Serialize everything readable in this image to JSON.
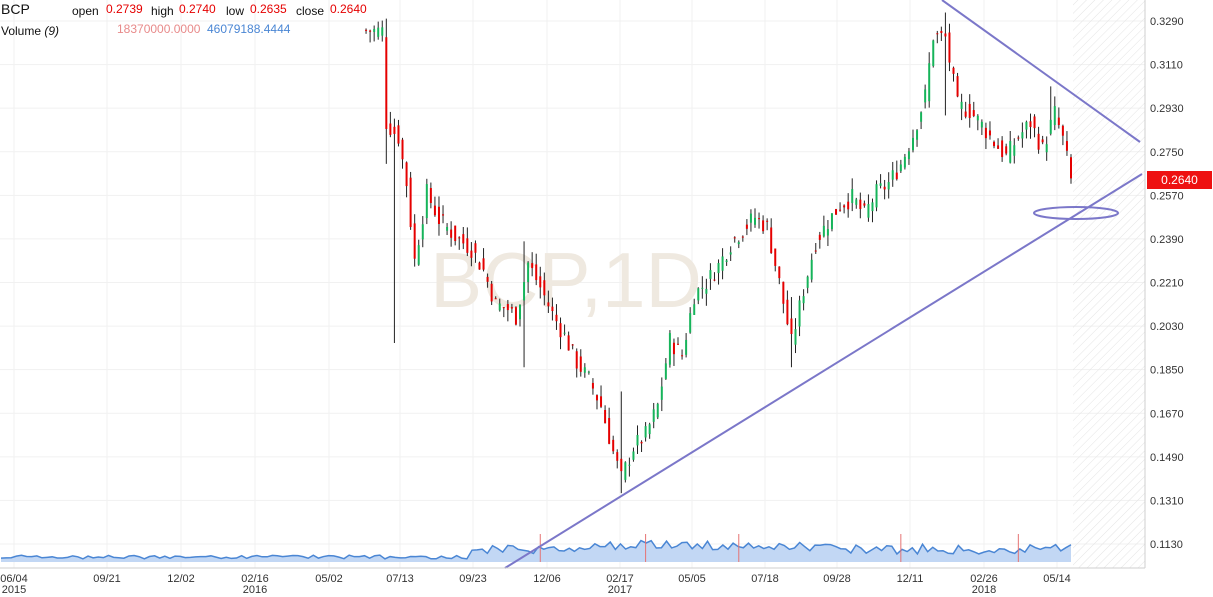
{
  "legend": {
    "symbol": "BCP",
    "open_label": "open",
    "open_value": "0.2739",
    "high_label": "high",
    "high_value": "0.2740",
    "low_label": "low",
    "low_value": "0.2635",
    "close_label": "close",
    "close_value": "0.2640",
    "volume_label": "Volume",
    "volume_period": "(9)",
    "volume_value_1": "18370000.0000",
    "volume_value_2": "46079188.4444"
  },
  "watermark": "BCP,1D",
  "last_price_tag": "0.2640",
  "colors": {
    "up": "#16b45a",
    "down": "#e50000",
    "drawing": "#7b77c9",
    "volume_fill": "#c2d7f4",
    "volume_line": "#4a86d4",
    "tag": "#ee1111"
  },
  "chart_data": {
    "type": "candlestick",
    "symbol": "BCP",
    "interval": "1D",
    "y_ticks": [
      "0.3290",
      "0.3110",
      "0.2930",
      "0.2750",
      "0.2570",
      "0.2390",
      "0.2210",
      "0.2030",
      "0.1850",
      "0.1670",
      "0.1490",
      "0.1310",
      "0.1130"
    ],
    "x_ticks": [
      {
        "label": "06/04",
        "sub": "2015"
      },
      {
        "label": "09/21",
        "sub": ""
      },
      {
        "label": "12/02",
        "sub": ""
      },
      {
        "label": "02/16",
        "sub": "2016"
      },
      {
        "label": "05/02",
        "sub": ""
      },
      {
        "label": "07/13",
        "sub": ""
      },
      {
        "label": "09/23",
        "sub": ""
      },
      {
        "label": "12/06",
        "sub": ""
      },
      {
        "label": "02/17",
        "sub": "2017"
      },
      {
        "label": "05/05",
        "sub": ""
      },
      {
        "label": "07/18",
        "sub": ""
      },
      {
        "label": "09/28",
        "sub": ""
      },
      {
        "label": "12/11",
        "sub": ""
      },
      {
        "label": "02/26",
        "sub": "2018"
      },
      {
        "label": "05/14",
        "sub": ""
      }
    ],
    "ylim": [
      0.1085,
      0.337
    ],
    "grid": true,
    "last_close": 0.264,
    "price_path": [
      [
        5,
        0.325
      ],
      [
        6,
        0.287
      ],
      [
        9,
        0.281
      ],
      [
        11,
        0.262
      ],
      [
        13,
        0.23
      ],
      [
        16,
        0.258
      ],
      [
        19,
        0.247
      ],
      [
        23,
        0.24
      ],
      [
        27,
        0.235
      ],
      [
        30,
        0.226
      ],
      [
        33,
        0.212
      ],
      [
        36,
        0.21
      ],
      [
        38,
        0.207
      ],
      [
        41,
        0.229
      ],
      [
        44,
        0.219
      ],
      [
        47,
        0.208
      ],
      [
        50,
        0.199
      ],
      [
        53,
        0.188
      ],
      [
        56,
        0.181
      ],
      [
        59,
        0.17
      ],
      [
        62,
        0.151
      ],
      [
        64,
        0.14
      ],
      [
        67,
        0.153
      ],
      [
        70,
        0.158
      ],
      [
        73,
        0.17
      ],
      [
        76,
        0.197
      ],
      [
        79,
        0.191
      ],
      [
        82,
        0.216
      ],
      [
        85,
        0.221
      ],
      [
        88,
        0.228
      ],
      [
        91,
        0.237
      ],
      [
        94,
        0.243
      ],
      [
        97,
        0.248
      ],
      [
        100,
        0.244
      ],
      [
        103,
        0.221
      ],
      [
        106,
        0.196
      ],
      [
        109,
        0.218
      ],
      [
        112,
        0.238
      ],
      [
        115,
        0.246
      ],
      [
        118,
        0.253
      ],
      [
        121,
        0.256
      ],
      [
        124,
        0.249
      ],
      [
        127,
        0.258
      ],
      [
        130,
        0.262
      ],
      [
        133,
        0.27
      ],
      [
        136,
        0.282
      ],
      [
        139,
        0.298
      ],
      [
        141,
        0.323
      ],
      [
        144,
        0.322
      ],
      [
        147,
        0.294
      ],
      [
        150,
        0.292
      ],
      [
        153,
        0.286
      ],
      [
        156,
        0.279
      ],
      [
        159,
        0.273
      ],
      [
        162,
        0.281
      ],
      [
        165,
        0.287
      ],
      [
        168,
        0.276
      ],
      [
        171,
        0.291
      ],
      [
        173,
        0.28
      ],
      [
        175,
        0.264
      ]
    ],
    "spikes": [
      {
        "i": 6,
        "high": 0.33,
        "low": 0.27
      },
      {
        "i": 8,
        "high": 0.263,
        "low": 0.196
      },
      {
        "i": 40,
        "high": 0.238,
        "low": 0.186
      },
      {
        "i": 64,
        "high": 0.176,
        "low": 0.134
      },
      {
        "i": 106,
        "high": 0.215,
        "low": 0.186
      },
      {
        "i": 144,
        "high": 0.3325,
        "low": 0.29
      },
      {
        "i": 170,
        "high": 0.302,
        "low": 0.283
      }
    ],
    "volume_spikes": [
      44,
      70,
      93,
      133,
      162
    ],
    "volume_bar_count": 176,
    "drawings": [
      {
        "kind": "trendline",
        "from": {
          "x": 0,
          "y": 0.08
        },
        "to": {
          "x": 0,
          "y": 0.26
        }
      },
      {
        "kind": "trendline",
        "from": {
          "x": 0,
          "y": 0.336
        },
        "to": {
          "x": 0,
          "y": 0.281
        }
      },
      {
        "kind": "ellipse"
      }
    ]
  }
}
